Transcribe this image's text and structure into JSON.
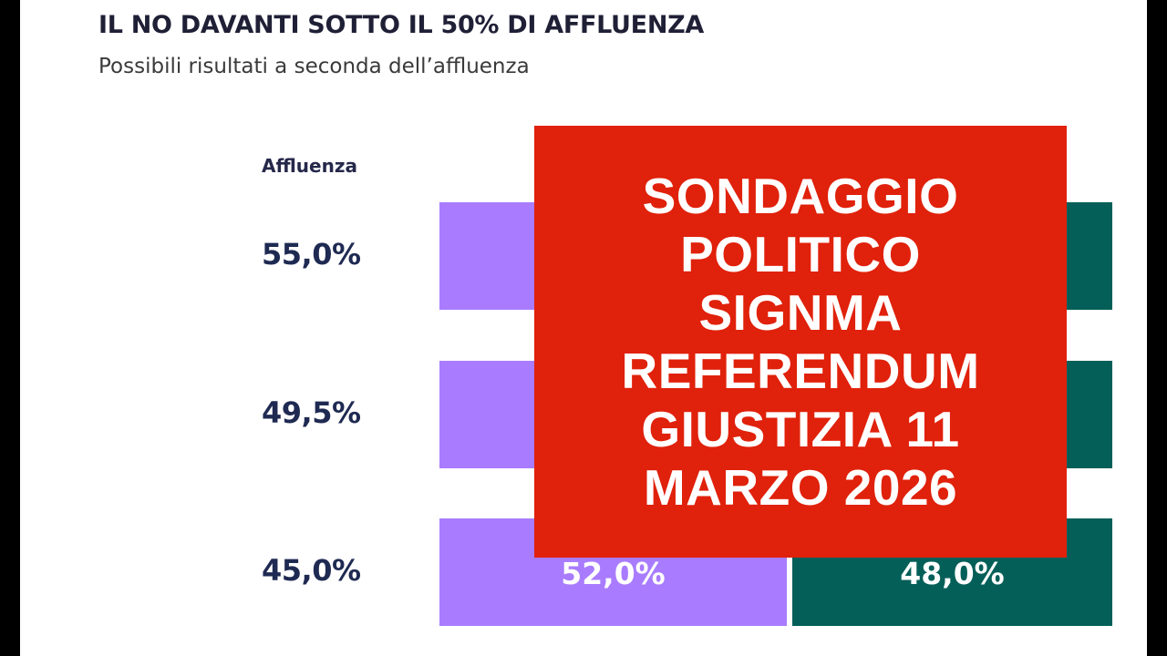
{
  "chart_data": {
    "type": "bar",
    "orientation": "horizontal-stacked",
    "title": "IL NO DAVANTI SOTTO IL 50% DI AFFLUENZA",
    "subtitle": "Possibili risultati a seconda dell’affluenza",
    "row_header": "Affluenza",
    "categories": [
      "55,0%",
      "49,5%",
      "45,0%"
    ],
    "series": [
      {
        "color": "#a97cff",
        "values": [
          null,
          null,
          52.0
        ],
        "labels": [
          "",
          "",
          "52,0%"
        ]
      },
      {
        "color": "#045f58",
        "values": [
          null,
          null,
          48.0
        ],
        "labels": [
          "",
          "",
          "48,0%"
        ]
      }
    ]
  },
  "overlay": {
    "text": "SONDAGGIO\nPOLITICO\nSIGNMA\nREFERENDUM\nGIUSTIZIA 11\nMARZO 2026",
    "background": "#e0210b"
  }
}
